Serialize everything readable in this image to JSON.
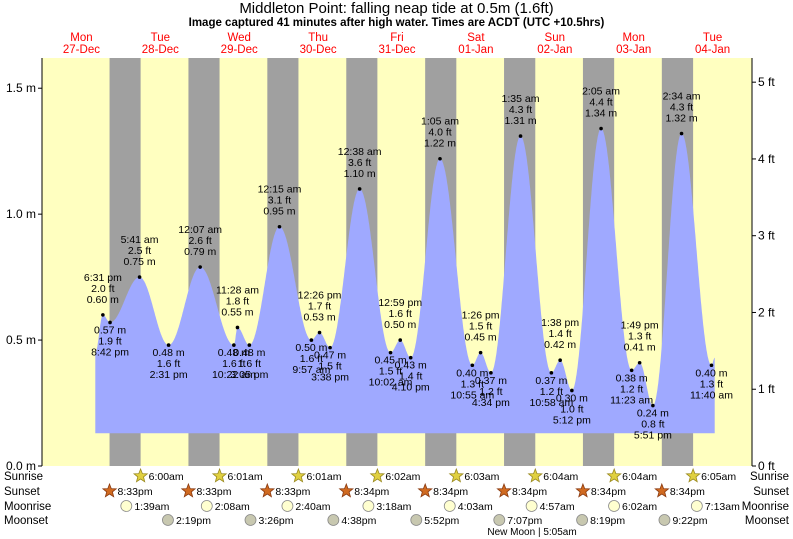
{
  "header": {
    "title": "Middleton Point: falling  neap tide at 0.5m (1.6ft)",
    "subtitle": "Image captured 41 minutes after high water. Times are ACDT (UTC +10.5hrs)"
  },
  "colors": {
    "day_bg": "#ffffc0",
    "night_bg": "#a0a0a0",
    "tide_fill": "#9fa9ff",
    "day_label": "#ff0000"
  },
  "chart_data": {
    "type": "area",
    "title": "Middleton Point: falling  neap tide at 0.5m (1.6ft)",
    "ylabel_left_unit": "m",
    "ylabel_right_unit": "ft",
    "ylim_m": [
      0,
      1.62
    ],
    "yticks_m": [
      "0.0 m",
      "0.5 m",
      "1.0 m",
      "1.5 m"
    ],
    "yticks_ft": [
      "0 ft",
      "1 ft",
      "2 ft",
      "3 ft",
      "4 ft",
      "5 ft"
    ],
    "x_start": "Mon 27-Dec 00:00",
    "x_end": "Tue 04-Jan 24:00",
    "days": [
      {
        "dow": "Mon",
        "date": "27-Dec"
      },
      {
        "dow": "Tue",
        "date": "28-Dec"
      },
      {
        "dow": "Wed",
        "date": "29-Dec"
      },
      {
        "dow": "Thu",
        "date": "30-Dec"
      },
      {
        "dow": "Fri",
        "date": "31-Dec"
      },
      {
        "dow": "Sat",
        "date": "01-Jan"
      },
      {
        "dow": "Sun",
        "date": "02-Jan"
      },
      {
        "dow": "Mon",
        "date": "03-Jan"
      },
      {
        "dow": "Tue",
        "date": "04-Jan"
      }
    ],
    "tides": [
      {
        "day": 0,
        "time": "6:31 pm",
        "m": "0.60 m",
        "ft": "2.0 ft",
        "v": 0.6,
        "type": "H"
      },
      {
        "day": 0,
        "time": "8:42 pm",
        "m": "0.57 m",
        "ft": "1.9 ft",
        "v": 0.57,
        "type": "L"
      },
      {
        "day": 1,
        "time": "5:41 am",
        "m": "0.75 m",
        "ft": "2.5 ft",
        "v": 0.75,
        "type": "H"
      },
      {
        "day": 1,
        "time": "2:31 pm",
        "m": "0.48 m",
        "ft": "1.6 ft",
        "v": 0.48,
        "type": "L"
      },
      {
        "day": 2,
        "time": "12:07 am",
        "m": "0.79 m",
        "ft": "2.6 ft",
        "v": 0.79,
        "type": "H"
      },
      {
        "day": 2,
        "time": "10:22 am",
        "m": "0.48 m",
        "ft": "1.6 ft",
        "v": 0.48,
        "type": "L"
      },
      {
        "day": 2,
        "time": "11:28 am",
        "m": "0.55 m",
        "ft": "1.8 ft",
        "v": 0.55,
        "type": "H"
      },
      {
        "day": 2,
        "time": "3:05 pm",
        "m": "0.48 m",
        "ft": "1.6 ft",
        "v": 0.48,
        "type": "L"
      },
      {
        "day": 3,
        "time": "12:15 am",
        "m": "0.95 m",
        "ft": "3.1 ft",
        "v": 0.95,
        "type": "H"
      },
      {
        "day": 3,
        "time": "9:57 am",
        "m": "0.50 m",
        "ft": "1.6 ft",
        "v": 0.5,
        "type": "L"
      },
      {
        "day": 3,
        "time": "12:26 pm",
        "m": "0.53 m",
        "ft": "1.7 ft",
        "v": 0.53,
        "type": "H"
      },
      {
        "day": 3,
        "time": "3:38 pm",
        "m": "0.47 m",
        "ft": "1.5 ft",
        "v": 0.47,
        "type": "L"
      },
      {
        "day": 4,
        "time": "12:38 am",
        "m": "1.10 m",
        "ft": "3.6 ft",
        "v": 1.1,
        "type": "H"
      },
      {
        "day": 4,
        "time": "10:02 am",
        "m": "0.45 m",
        "ft": "1.5 ft",
        "v": 0.45,
        "type": "L"
      },
      {
        "day": 4,
        "time": "12:59 pm",
        "m": "0.50 m",
        "ft": "1.6 ft",
        "v": 0.5,
        "type": "H"
      },
      {
        "day": 4,
        "time": "4:10 pm",
        "m": "0.43 m",
        "ft": "1.4 ft",
        "v": 0.43,
        "type": "L"
      },
      {
        "day": 5,
        "time": "1:05 am",
        "m": "1.22 m",
        "ft": "4.0 ft",
        "v": 1.22,
        "type": "H"
      },
      {
        "day": 5,
        "time": "10:55 am",
        "m": "0.40 m",
        "ft": "1.3 ft",
        "v": 0.4,
        "type": "L"
      },
      {
        "day": 5,
        "time": "1:26 pm",
        "m": "0.45 m",
        "ft": "1.5 ft",
        "v": 0.45,
        "type": "H"
      },
      {
        "day": 5,
        "time": "4:34 pm",
        "m": "0.37 m",
        "ft": "1.2 ft",
        "v": 0.37,
        "type": "L"
      },
      {
        "day": 6,
        "time": "1:35 am",
        "m": "1.31 m",
        "ft": "4.3 ft",
        "v": 1.31,
        "type": "H"
      },
      {
        "day": 6,
        "time": "10:58 am",
        "m": "0.37 m",
        "ft": "1.2 ft",
        "v": 0.37,
        "type": "L"
      },
      {
        "day": 6,
        "time": "1:38 pm",
        "m": "0.42 m",
        "ft": "1.4 ft",
        "v": 0.42,
        "type": "H"
      },
      {
        "day": 6,
        "time": "5:12 pm",
        "m": "0.30 m",
        "ft": "1.0 ft",
        "v": 0.3,
        "type": "L"
      },
      {
        "day": 7,
        "time": "2:05 am",
        "m": "1.34 m",
        "ft": "4.4 ft",
        "v": 1.34,
        "type": "H"
      },
      {
        "day": 7,
        "time": "11:23 am",
        "m": "0.38 m",
        "ft": "1.2 ft",
        "v": 0.38,
        "type": "L"
      },
      {
        "day": 7,
        "time": "1:49 pm",
        "m": "0.41 m",
        "ft": "1.3 ft",
        "v": 0.41,
        "type": "H"
      },
      {
        "day": 7,
        "time": "5:51 pm",
        "m": "0.24 m",
        "ft": "0.8 ft",
        "v": 0.24,
        "type": "L"
      },
      {
        "day": 8,
        "time": "2:34 am",
        "m": "1.32 m",
        "ft": "4.3 ft",
        "v": 1.32,
        "type": "H"
      },
      {
        "day": 8,
        "time": "11:40 am",
        "m": "0.40 m",
        "ft": "1.3 ft",
        "v": 0.4,
        "type": "L"
      }
    ],
    "current_level": {
      "m": 0.5,
      "ft": 1.6,
      "state": "falling"
    }
  },
  "astro": {
    "row_labels": [
      "Sunrise",
      "Sunset",
      "Moonrise",
      "Moonset"
    ],
    "sunrise": [
      "",
      "6:00am",
      "6:01am",
      "6:01am",
      "6:02am",
      "6:03am",
      "6:04am",
      "6:04am",
      "6:05am"
    ],
    "sunset": [
      "8:33pm",
      "8:33pm",
      "8:33pm",
      "8:34pm",
      "8:34pm",
      "8:34pm",
      "8:34pm",
      "8:34pm",
      ""
    ],
    "moonrise": [
      "",
      "1:39am",
      "2:08am",
      "2:40am",
      "3:18am",
      "4:03am",
      "4:57am",
      "6:02am",
      "7:13am"
    ],
    "moonset": [
      "",
      "2:19pm",
      "3:26pm",
      "4:38pm",
      "5:52pm",
      "7:07pm",
      "8:19pm",
      "9:22pm",
      ""
    ],
    "new_moon": "New Moon | 5:05am"
  }
}
